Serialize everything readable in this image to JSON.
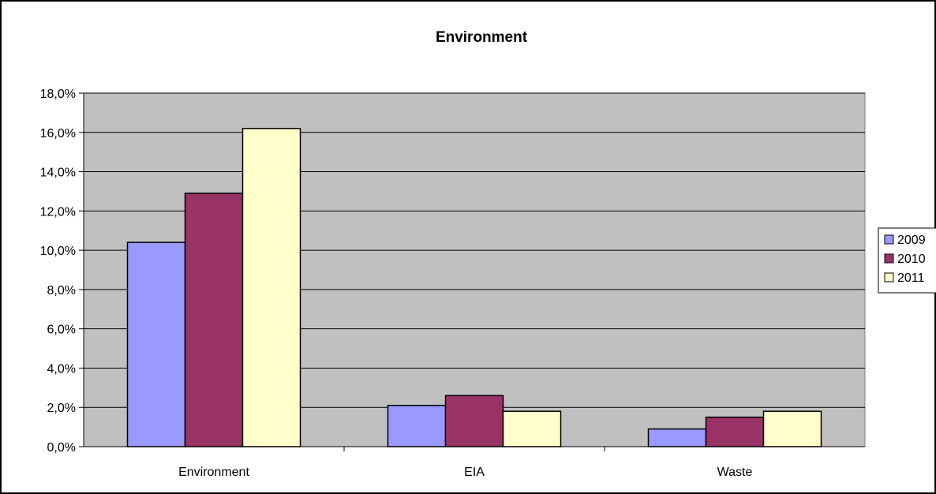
{
  "chart_data": {
    "type": "bar",
    "title": "Environment",
    "xlabel": "",
    "ylabel": "",
    "categories": [
      "Environment",
      "EIA",
      "Waste"
    ],
    "series": [
      {
        "name": "2009",
        "values": [
          10.4,
          2.1,
          0.9
        ]
      },
      {
        "name": "2010",
        "values": [
          12.9,
          2.6,
          1.5
        ]
      },
      {
        "name": "2011",
        "values": [
          16.2,
          1.8,
          1.8
        ]
      }
    ],
    "ylim": [
      0,
      18
    ],
    "yticks": [
      0,
      2,
      4,
      6,
      8,
      10,
      12,
      14,
      16,
      18
    ],
    "ytick_labels": [
      "0,0%",
      "2,0%",
      "4,0%",
      "6,0%",
      "8,0%",
      "10,0%",
      "12,0%",
      "14,0%",
      "16,0%",
      "18,0%"
    ],
    "grid": true,
    "legend": "right",
    "colors": {
      "series": [
        "#9999ff",
        "#993366",
        "#ffffcc"
      ],
      "plot_background": "#c0c0c0",
      "bar_border": "#000000"
    }
  }
}
